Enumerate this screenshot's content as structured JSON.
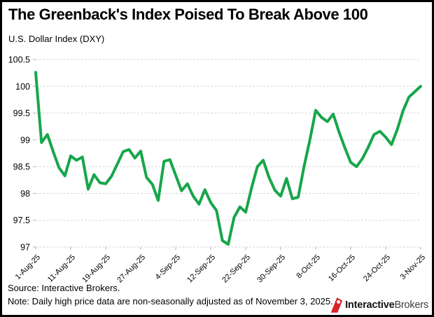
{
  "header": {
    "title": "The Greenback's Index Poised To Break Above 100",
    "subtitle": "U.S. Dollar Index (DXY)"
  },
  "footer": {
    "source": "Source: Interactive Brokers.",
    "note": "Note: Daily high price data are non-seasonally adjusted as of November 3, 2025.",
    "logo_bold": "Interactive",
    "logo_regular": "Brokers"
  },
  "colors": {
    "line": "#17a64b",
    "grid": "#d6d6d6",
    "tick": "#aeaeae",
    "text": "#000000",
    "logo_red": "#d9232a"
  },
  "chart_data": {
    "type": "line",
    "title": "The Greenback's Index Poised To Break Above 100",
    "subtitle": "U.S. Dollar Index (DXY)",
    "xlabel": "",
    "ylabel": "",
    "ylim": [
      97,
      100.5
    ],
    "yticks": [
      100.5,
      100,
      99.5,
      99,
      98.5,
      98,
      97.5,
      97
    ],
    "grid": "horizontal-dashed",
    "legend": "none",
    "x_axis_labels": [
      "1-Aug-25",
      "11-Aug-25",
      "19-Aug-25",
      "27-Aug-25",
      "4-Sep-25",
      "12-Sep-25",
      "22-Sep-25",
      "30-Sep-25",
      "8-Oct-25",
      "16-Oct-25",
      "24-Oct-25",
      "3-Nov-25"
    ],
    "x_label_every": 6,
    "x": [
      "1-Aug-25",
      "4-Aug-25",
      "5-Aug-25",
      "6-Aug-25",
      "7-Aug-25",
      "8-Aug-25",
      "11-Aug-25",
      "12-Aug-25",
      "13-Aug-25",
      "14-Aug-25",
      "15-Aug-25",
      "18-Aug-25",
      "19-Aug-25",
      "20-Aug-25",
      "21-Aug-25",
      "22-Aug-25",
      "25-Aug-25",
      "26-Aug-25",
      "27-Aug-25",
      "28-Aug-25",
      "29-Aug-25",
      "1-Sep-25",
      "2-Sep-25",
      "3-Sep-25",
      "4-Sep-25",
      "5-Sep-25",
      "8-Sep-25",
      "9-Sep-25",
      "10-Sep-25",
      "11-Sep-25",
      "12-Sep-25",
      "15-Sep-25",
      "16-Sep-25",
      "17-Sep-25",
      "18-Sep-25",
      "19-Sep-25",
      "22-Sep-25",
      "23-Sep-25",
      "24-Sep-25",
      "25-Sep-25",
      "26-Sep-25",
      "29-Sep-25",
      "30-Sep-25",
      "1-Oct-25",
      "2-Oct-25",
      "3-Oct-25",
      "6-Oct-25",
      "7-Oct-25",
      "8-Oct-25",
      "9-Oct-25",
      "10-Oct-25",
      "13-Oct-25",
      "14-Oct-25",
      "15-Oct-25",
      "16-Oct-25",
      "17-Oct-25",
      "20-Oct-25",
      "21-Oct-25",
      "22-Oct-25",
      "23-Oct-25",
      "24-Oct-25",
      "27-Oct-25",
      "28-Oct-25",
      "29-Oct-25",
      "30-Oct-25",
      "31-Oct-25",
      "3-Nov-25"
    ],
    "values": [
      100.26,
      98.95,
      99.1,
      98.78,
      98.48,
      98.33,
      98.7,
      98.62,
      98.68,
      98.08,
      98.35,
      98.2,
      98.18,
      98.32,
      98.55,
      98.78,
      98.82,
      98.66,
      98.79,
      98.3,
      98.17,
      97.87,
      98.6,
      98.63,
      98.34,
      98.05,
      98.18,
      97.95,
      97.8,
      98.07,
      97.83,
      97.68,
      97.12,
      97.05,
      97.55,
      97.75,
      97.65,
      98.1,
      98.5,
      98.62,
      98.3,
      98.06,
      97.95,
      98.28,
      97.9,
      97.93,
      98.5,
      99.0,
      99.55,
      99.42,
      99.34,
      99.48,
      99.15,
      98.85,
      98.58,
      98.5,
      98.65,
      98.86,
      99.1,
      99.16,
      99.05,
      98.91,
      99.2,
      99.55,
      99.8,
      99.9,
      100.0
    ]
  }
}
